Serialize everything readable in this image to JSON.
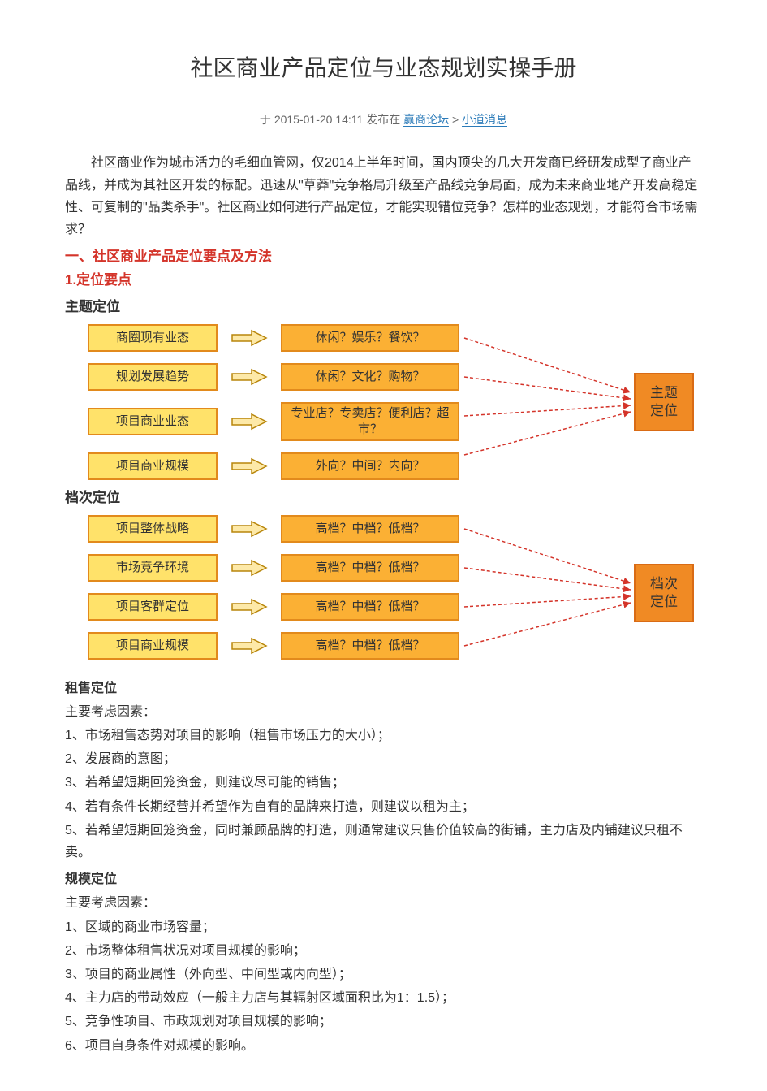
{
  "title": "社区商业产品定位与业态规划实操手册",
  "meta": {
    "prefix": "于 ",
    "date": "2015-01-20 14:11",
    "mid": " 发布在 ",
    "forum": "赢商论坛",
    "sep": " > ",
    "cat": "小道消息"
  },
  "intro": "社区商业作为城市活力的毛细血管网，仅2014上半年时间，国内顶尖的几大开发商已经研发成型了商业产品线，并成为其社区开发的标配。迅速从\"草莽\"竞争格局升级至产品线竞争局面，成为未来商业地产开发高稳定性、可复制的\"品类杀手\"。社区商业如何进行产品定位，才能实现错位竞争？怎样的业态规划，才能符合市场需求？",
  "sec1": "一、社区商业产品定位要点及方法",
  "sec1_1": "1.定位要点",
  "theme_title": "主题定位",
  "grade_title": "档次定位",
  "diagram": {
    "box_bg_left": "#ffe26a",
    "box_bg_mid": "#fbb034",
    "box_border": "#e28a1c",
    "arrow_outline": "#b8860b",
    "arrow_fill": "#fde9a8",
    "conv_bg": "#f08a24",
    "conv_border": "#d96b15",
    "dash_color": "#d4342a",
    "theme": {
      "rows": [
        {
          "left": "商圈现有业态",
          "mid": "休闲？娱乐？餐饮？"
        },
        {
          "left": "规划发展趋势",
          "mid": "休闲？文化？购物？"
        },
        {
          "left": "项目商业业态",
          "mid": "专业店？专卖店？便利店？超市？"
        },
        {
          "left": "项目商业规模",
          "mid": "外向？中间？内向？"
        }
      ],
      "conv": "主题\n定位"
    },
    "grade": {
      "rows": [
        {
          "left": "项目整体战略",
          "mid": "高档？中档？低档？"
        },
        {
          "left": "市场竞争环境",
          "mid": "高档？中档？低档？"
        },
        {
          "left": "项目客群定位",
          "mid": "高档？中档？低档？"
        },
        {
          "left": "项目商业规模",
          "mid": "高档？中档？低档？"
        }
      ],
      "conv": "档次\n定位"
    }
  },
  "rent": {
    "title": "租售定位",
    "sub": "主要考虑因素：",
    "items": [
      "1、市场租售态势对项目的影响（租售市场压力的大小）；",
      "2、发展商的意图；",
      "3、若希望短期回笼资金，则建议尽可能的销售；",
      "4、若有条件长期经营并希望作为自有的品牌来打造，则建议以租为主；",
      "5、若希望短期回笼资金，同时兼顾品牌的打造，则通常建议只售价值较高的街铺，主力店及内铺建议只租不卖。"
    ]
  },
  "scale": {
    "title": "规模定位",
    "sub": "主要考虑因素：",
    "items": [
      "1、区域的商业市场容量；",
      "2、市场整体租售状况对项目规模的影响；",
      "3、项目的商业属性（外向型、中间型或内向型）；",
      "4、主力店的带动效应（一般主力店与其辐射区域面积比为1：1.5）；",
      "5、竞争性项目、市政规划对项目规模的影响；",
      "6、项目自身条件对规模的影响。"
    ]
  }
}
